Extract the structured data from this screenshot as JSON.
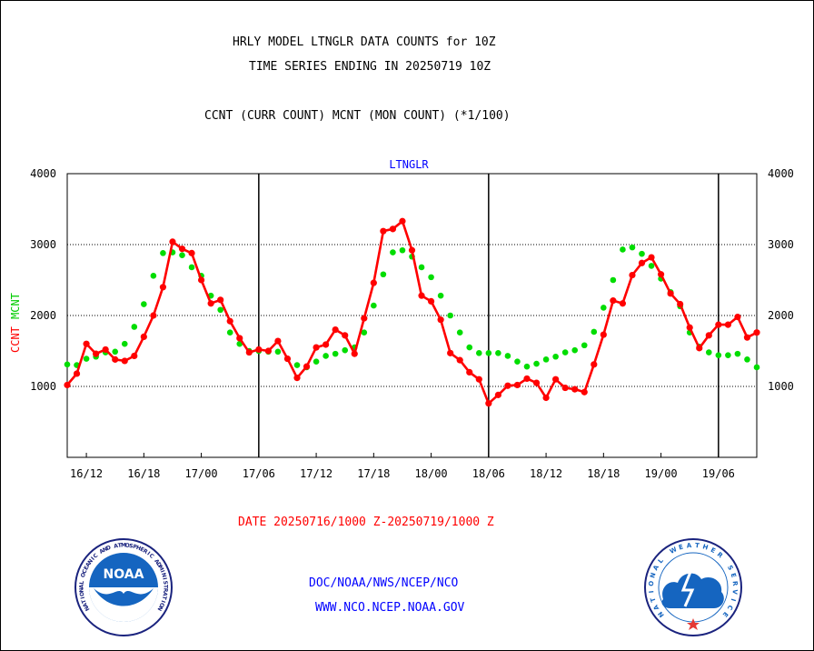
{
  "header": {
    "line1": "HRLY MODEL LTNGLR DATA COUNTS for 10Z",
    "line2": "TIME SERIES ENDING IN 20250719 10Z",
    "line3": "CCNT (CURR COUNT) MCNT (MON COUNT) (*1/100)"
  },
  "footer": {
    "date_range": "DATE 20250716/1000 Z-20250719/1000 Z",
    "org": "DOC/NOAA/NWS/NCEP/NCO",
    "url": "WWW.NCO.NCEP.NOAA.GOV"
  },
  "logos": {
    "noaa_center": "NOAA",
    "noaa_ring": "NATIONAL OCEANIC AND ATMOSPHERIC ADMINISTRATION",
    "noaa_bottom": "U.S. DEPARTMENT OF COMMERCE",
    "nws_ring": "NATIONAL WEATHER SERVICE"
  },
  "colors": {
    "ccnt": "#ff0000",
    "mcnt": "#00dd00",
    "title": "#0000ff"
  },
  "chart_data": {
    "type": "line",
    "title": "LTNGLR",
    "ylabel_left": "CCNT",
    "ylabel_left2": "MCNT",
    "ylim": [
      0,
      4000
    ],
    "yticks": [
      1000,
      2000,
      3000,
      4000
    ],
    "x_count": 73,
    "xticks": [
      {
        "i": 2,
        "label": "16/12"
      },
      {
        "i": 8,
        "label": "16/18"
      },
      {
        "i": 14,
        "label": "17/00"
      },
      {
        "i": 20,
        "label": "17/06"
      },
      {
        "i": 26,
        "label": "17/12"
      },
      {
        "i": 32,
        "label": "17/18"
      },
      {
        "i": 38,
        "label": "18/00"
      },
      {
        "i": 44,
        "label": "18/06"
      },
      {
        "i": 50,
        "label": "18/12"
      },
      {
        "i": 56,
        "label": "18/18"
      },
      {
        "i": 62,
        "label": "19/00"
      },
      {
        "i": 68,
        "label": "19/06"
      }
    ],
    "vlines": [
      20,
      44,
      68
    ],
    "series": [
      {
        "name": "CCNT",
        "values": [
          1020,
          1180,
          1600,
          1460,
          1520,
          1380,
          1360,
          1430,
          1700,
          2000,
          2400,
          3040,
          2940,
          2880,
          2500,
          2170,
          2220,
          1920,
          1680,
          1480,
          1520,
          1500,
          1640,
          1390,
          1120,
          1280,
          1550,
          1590,
          1800,
          1720,
          1460,
          1960,
          2460,
          3190,
          3220,
          3330,
          2920,
          2280,
          2200,
          1940,
          1470,
          1370,
          1200,
          1100,
          760,
          880,
          1010,
          1020,
          1110,
          1050,
          840,
          1100,
          980,
          960,
          920,
          1310,
          1730,
          2210,
          2170,
          2570,
          2740,
          2820,
          2580,
          2310,
          2160,
          1830,
          1540,
          1720,
          1870,
          1870,
          1980,
          1690,
          1760
        ]
      },
      {
        "name": "MCNT",
        "values": [
          1310,
          1300,
          1390,
          1420,
          1480,
          1490,
          1600,
          1840,
          2160,
          2560,
          2880,
          2890,
          2850,
          2680,
          2560,
          2280,
          2080,
          1760,
          1600,
          1500,
          1500,
          1490,
          1490,
          1390,
          1300,
          1270,
          1350,
          1430,
          1460,
          1510,
          1550,
          1760,
          2140,
          2580,
          2890,
          2920,
          2830,
          2680,
          2540,
          2280,
          2000,
          1760,
          1550,
          1470,
          1470,
          1470,
          1430,
          1350,
          1280,
          1320,
          1380,
          1420,
          1480,
          1510,
          1580,
          1770,
          2110,
          2500,
          2930,
          2960,
          2870,
          2700,
          2520,
          2330,
          2130,
          1760,
          1560,
          1480,
          1440,
          1440,
          1460,
          1380,
          1270
        ]
      }
    ]
  }
}
